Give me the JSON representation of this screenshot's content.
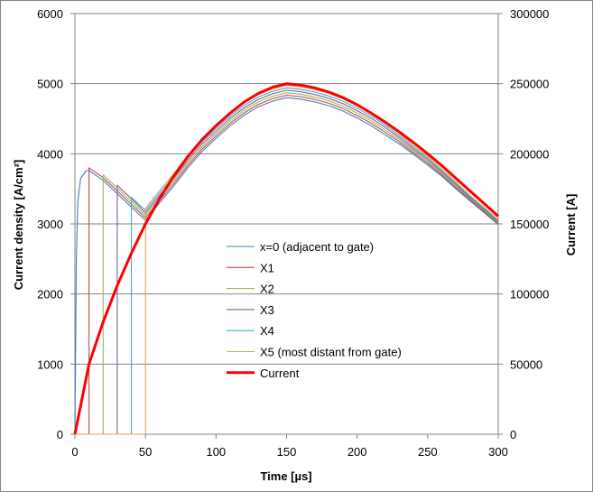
{
  "chart_data": {
    "type": "line",
    "xlabel": "Time [µs]",
    "ylabel": "Current density [A/cm²]",
    "y2label": "Current [A]",
    "xlim": [
      0,
      300
    ],
    "ylim": [
      0,
      6000
    ],
    "y2lim": [
      0,
      300000
    ],
    "xticks": [
      0,
      50,
      100,
      150,
      200,
      250,
      300
    ],
    "yticks": [
      0,
      1000,
      2000,
      3000,
      4000,
      5000,
      6000
    ],
    "y2ticks": [
      0,
      50000,
      100000,
      150000,
      200000,
      250000,
      300000
    ],
    "grid": "horizontal",
    "legend_placement": "center",
    "series": [
      {
        "name": "x=0 (adjacent to gate)",
        "axis": "left",
        "color": "#4a7ebb",
        "points": [
          [
            0,
            0
          ],
          [
            1,
            2500
          ],
          [
            2,
            3300
          ],
          [
            4,
            3650
          ],
          [
            8,
            3760
          ],
          [
            10,
            3760
          ],
          [
            20,
            3620
          ],
          [
            30,
            3430
          ],
          [
            40,
            3240
          ],
          [
            50,
            3050
          ],
          [
            60,
            3300
          ],
          [
            70,
            3540
          ],
          [
            80,
            3800
          ],
          [
            90,
            4030
          ],
          [
            100,
            4220
          ],
          [
            110,
            4400
          ],
          [
            120,
            4550
          ],
          [
            130,
            4670
          ],
          [
            140,
            4750
          ],
          [
            150,
            4800
          ],
          [
            160,
            4780
          ],
          [
            170,
            4740
          ],
          [
            180,
            4685
          ],
          [
            190,
            4610
          ],
          [
            200,
            4510
          ],
          [
            210,
            4400
          ],
          [
            220,
            4270
          ],
          [
            230,
            4140
          ],
          [
            240,
            3990
          ],
          [
            250,
            3840
          ],
          [
            260,
            3680
          ],
          [
            270,
            3500
          ],
          [
            280,
            3330
          ],
          [
            290,
            3160
          ],
          [
            300,
            2990
          ]
        ]
      },
      {
        "name": "X1",
        "axis": "left",
        "color": "#be4b48",
        "points": [
          [
            0,
            0
          ],
          [
            10,
            0
          ],
          [
            10,
            3800
          ],
          [
            20,
            3660
          ],
          [
            30,
            3470
          ],
          [
            40,
            3280
          ],
          [
            50,
            3085
          ],
          [
            60,
            3335
          ],
          [
            70,
            3575
          ],
          [
            80,
            3835
          ],
          [
            90,
            4065
          ],
          [
            100,
            4255
          ],
          [
            110,
            4435
          ],
          [
            120,
            4585
          ],
          [
            130,
            4705
          ],
          [
            140,
            4785
          ],
          [
            150,
            4835
          ],
          [
            160,
            4815
          ],
          [
            170,
            4775
          ],
          [
            180,
            4720
          ],
          [
            190,
            4645
          ],
          [
            200,
            4545
          ],
          [
            210,
            4435
          ],
          [
            220,
            4305
          ],
          [
            230,
            4170
          ],
          [
            240,
            4015
          ],
          [
            250,
            3865
          ],
          [
            260,
            3700
          ],
          [
            270,
            3520
          ],
          [
            280,
            3345
          ],
          [
            290,
            3175
          ],
          [
            300,
            3000
          ]
        ]
      },
      {
        "name": "X2",
        "axis": "left",
        "color": "#98b954",
        "points": [
          [
            0,
            0
          ],
          [
            20,
            0
          ],
          [
            20,
            3700
          ],
          [
            30,
            3510
          ],
          [
            40,
            3320
          ],
          [
            50,
            3120
          ],
          [
            60,
            3370
          ],
          [
            70,
            3610
          ],
          [
            80,
            3870
          ],
          [
            90,
            4100
          ],
          [
            100,
            4290
          ],
          [
            110,
            4470
          ],
          [
            120,
            4620
          ],
          [
            130,
            4740
          ],
          [
            140,
            4820
          ],
          [
            150,
            4870
          ],
          [
            160,
            4850
          ],
          [
            170,
            4810
          ],
          [
            180,
            4755
          ],
          [
            190,
            4680
          ],
          [
            200,
            4580
          ],
          [
            210,
            4470
          ],
          [
            220,
            4340
          ],
          [
            230,
            4200
          ],
          [
            240,
            4040
          ],
          [
            250,
            3890
          ],
          [
            260,
            3720
          ],
          [
            270,
            3540
          ],
          [
            280,
            3360
          ],
          [
            290,
            3190
          ],
          [
            300,
            3015
          ]
        ]
      },
      {
        "name": "X3",
        "axis": "left",
        "color": "#7d60a0",
        "points": [
          [
            0,
            0
          ],
          [
            30,
            0
          ],
          [
            30,
            3550
          ],
          [
            40,
            3360
          ],
          [
            50,
            3155
          ],
          [
            60,
            3405
          ],
          [
            70,
            3645
          ],
          [
            80,
            3905
          ],
          [
            90,
            4135
          ],
          [
            100,
            4325
          ],
          [
            110,
            4505
          ],
          [
            120,
            4655
          ],
          [
            130,
            4775
          ],
          [
            140,
            4855
          ],
          [
            150,
            4905
          ],
          [
            160,
            4885
          ],
          [
            170,
            4845
          ],
          [
            180,
            4790
          ],
          [
            190,
            4715
          ],
          [
            200,
            4615
          ],
          [
            210,
            4505
          ],
          [
            220,
            4375
          ],
          [
            230,
            4230
          ],
          [
            240,
            4065
          ],
          [
            250,
            3915
          ],
          [
            260,
            3740
          ],
          [
            270,
            3560
          ],
          [
            280,
            3375
          ],
          [
            290,
            3205
          ],
          [
            300,
            3030
          ]
        ]
      },
      {
        "name": "X4",
        "axis": "left",
        "color": "#46aac5",
        "points": [
          [
            0,
            0
          ],
          [
            40,
            0
          ],
          [
            40,
            3380
          ],
          [
            50,
            3190
          ],
          [
            60,
            3440
          ],
          [
            70,
            3680
          ],
          [
            80,
            3940
          ],
          [
            90,
            4170
          ],
          [
            100,
            4360
          ],
          [
            110,
            4540
          ],
          [
            120,
            4690
          ],
          [
            130,
            4810
          ],
          [
            140,
            4890
          ],
          [
            150,
            4940
          ],
          [
            160,
            4920
          ],
          [
            170,
            4880
          ],
          [
            180,
            4825
          ],
          [
            190,
            4750
          ],
          [
            200,
            4650
          ],
          [
            210,
            4540
          ],
          [
            220,
            4410
          ],
          [
            230,
            4260
          ],
          [
            240,
            4090
          ],
          [
            250,
            3940
          ],
          [
            260,
            3760
          ],
          [
            270,
            3580
          ],
          [
            280,
            3390
          ],
          [
            290,
            3220
          ],
          [
            300,
            3045
          ]
        ]
      },
      {
        "name": "X5 (most distant from gate)",
        "axis": "left",
        "color": "#e0a060",
        "points": [
          [
            0,
            0
          ],
          [
            50,
            0
          ],
          [
            50,
            3225
          ],
          [
            60,
            3475
          ],
          [
            70,
            3715
          ],
          [
            80,
            3975
          ],
          [
            90,
            4205
          ],
          [
            100,
            4395
          ],
          [
            110,
            4575
          ],
          [
            120,
            4725
          ],
          [
            130,
            4845
          ],
          [
            140,
            4925
          ],
          [
            150,
            4975
          ],
          [
            160,
            4955
          ],
          [
            170,
            4915
          ],
          [
            180,
            4860
          ],
          [
            190,
            4785
          ],
          [
            200,
            4685
          ],
          [
            210,
            4575
          ],
          [
            220,
            4445
          ],
          [
            230,
            4290
          ],
          [
            240,
            4115
          ],
          [
            250,
            3965
          ],
          [
            260,
            3780
          ],
          [
            270,
            3600
          ],
          [
            280,
            3405
          ],
          [
            290,
            3235
          ],
          [
            300,
            3060
          ]
        ]
      },
      {
        "name": "Current",
        "axis": "right",
        "color": "#ff0000",
        "points": [
          [
            0,
            0
          ],
          [
            10,
            50000
          ],
          [
            20,
            80000
          ],
          [
            30,
            106000
          ],
          [
            40,
            129000
          ],
          [
            50,
            150000
          ],
          [
            60,
            168000
          ],
          [
            70,
            184000
          ],
          [
            80,
            198000
          ],
          [
            90,
            210000
          ],
          [
            100,
            220000
          ],
          [
            110,
            229000
          ],
          [
            120,
            237000
          ],
          [
            130,
            243000
          ],
          [
            140,
            247500
          ],
          [
            150,
            250000
          ],
          [
            160,
            249000
          ],
          [
            170,
            247000
          ],
          [
            180,
            244000
          ],
          [
            190,
            240000
          ],
          [
            200,
            235000
          ],
          [
            210,
            229000
          ],
          [
            220,
            222500
          ],
          [
            230,
            215500
          ],
          [
            240,
            208000
          ],
          [
            250,
            200000
          ],
          [
            260,
            191500
          ],
          [
            270,
            182500
          ],
          [
            280,
            173500
          ],
          [
            290,
            164500
          ],
          [
            300,
            155500
          ]
        ]
      }
    ]
  }
}
